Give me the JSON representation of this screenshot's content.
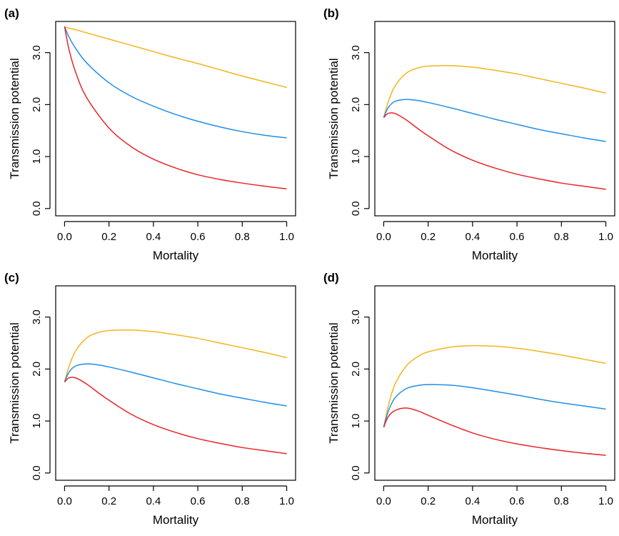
{
  "chart_data": [
    {
      "panel": "(a)",
      "type": "line",
      "xlabel": "Mortality",
      "ylabel": "Transmission potential",
      "xlim": [
        0,
        1
      ],
      "ylim": [
        0,
        3.5
      ],
      "xticks": [
        "0.0",
        "0.2",
        "0.4",
        "0.6",
        "0.8",
        "1.0"
      ],
      "yticks": [
        "0.0",
        "1.0",
        "2.0",
        "3.0"
      ],
      "x": [
        0,
        0.02,
        0.05,
        0.1,
        0.2,
        0.3,
        0.4,
        0.5,
        0.6,
        0.7,
        0.8,
        0.9,
        1.0
      ],
      "series": [
        {
          "color": "#F2B51C",
          "values": [
            3.5,
            3.47,
            3.44,
            3.38,
            3.26,
            3.14,
            3.02,
            2.9,
            2.79,
            2.67,
            2.55,
            2.44,
            2.33
          ]
        },
        {
          "color": "#1F8FE6",
          "values": [
            3.5,
            3.3,
            3.08,
            2.8,
            2.42,
            2.16,
            1.97,
            1.81,
            1.68,
            1.57,
            1.48,
            1.41,
            1.36
          ]
        },
        {
          "color": "#E8252A",
          "values": [
            3.5,
            3.06,
            2.62,
            2.13,
            1.55,
            1.19,
            0.95,
            0.78,
            0.65,
            0.56,
            0.49,
            0.43,
            0.38
          ]
        }
      ]
    },
    {
      "panel": "(b)",
      "type": "line",
      "xlabel": "Mortality",
      "ylabel": "Transmission potential",
      "xlim": [
        0,
        1
      ],
      "ylim": [
        0,
        3.5
      ],
      "xticks": [
        "0.0",
        "0.2",
        "0.4",
        "0.6",
        "0.8",
        "1.0"
      ],
      "yticks": [
        "0.0",
        "1.0",
        "2.0",
        "3.0"
      ],
      "x": [
        0,
        0.02,
        0.05,
        0.1,
        0.15,
        0.2,
        0.3,
        0.4,
        0.5,
        0.6,
        0.7,
        0.8,
        0.9,
        1.0
      ],
      "series": [
        {
          "color": "#F2B51C",
          "values": [
            1.75,
            2.05,
            2.35,
            2.6,
            2.7,
            2.74,
            2.75,
            2.72,
            2.66,
            2.59,
            2.5,
            2.41,
            2.32,
            2.22
          ]
        },
        {
          "color": "#1F8FE6",
          "values": [
            1.75,
            1.94,
            2.06,
            2.1,
            2.08,
            2.04,
            1.94,
            1.83,
            1.72,
            1.62,
            1.52,
            1.44,
            1.36,
            1.29
          ]
        },
        {
          "color": "#E8252A",
          "values": [
            1.75,
            1.83,
            1.83,
            1.71,
            1.55,
            1.4,
            1.13,
            0.93,
            0.78,
            0.66,
            0.57,
            0.49,
            0.43,
            0.37
          ]
        }
      ]
    },
    {
      "panel": "(c)",
      "type": "line",
      "xlabel": "Mortality",
      "ylabel": "Transmission potential",
      "xlim": [
        0,
        1
      ],
      "ylim": [
        0,
        3.5
      ],
      "xticks": [
        "0.0",
        "0.2",
        "0.4",
        "0.6",
        "0.8",
        "1.0"
      ],
      "yticks": [
        "0.0",
        "1.0",
        "2.0",
        "3.0"
      ],
      "x": [
        0,
        0.02,
        0.05,
        0.1,
        0.15,
        0.2,
        0.3,
        0.4,
        0.5,
        0.6,
        0.7,
        0.8,
        0.9,
        1.0
      ],
      "series": [
        {
          "color": "#F2B51C",
          "values": [
            1.75,
            2.05,
            2.35,
            2.6,
            2.7,
            2.74,
            2.75,
            2.72,
            2.66,
            2.59,
            2.5,
            2.41,
            2.32,
            2.22
          ]
        },
        {
          "color": "#1F8FE6",
          "values": [
            1.75,
            1.94,
            2.06,
            2.1,
            2.08,
            2.04,
            1.94,
            1.83,
            1.72,
            1.62,
            1.52,
            1.44,
            1.36,
            1.29
          ]
        },
        {
          "color": "#E8252A",
          "values": [
            1.75,
            1.83,
            1.83,
            1.71,
            1.55,
            1.4,
            1.13,
            0.93,
            0.78,
            0.66,
            0.57,
            0.49,
            0.43,
            0.37
          ]
        }
      ]
    },
    {
      "panel": "(d)",
      "type": "line",
      "xlabel": "Mortality",
      "ylabel": "Transmission potential",
      "xlim": [
        0,
        1
      ],
      "ylim": [
        0,
        3.5
      ],
      "xticks": [
        "0.0",
        "0.2",
        "0.4",
        "0.6",
        "0.8",
        "1.0"
      ],
      "yticks": [
        "0.0",
        "1.0",
        "2.0",
        "3.0"
      ],
      "x": [
        0,
        0.02,
        0.05,
        0.1,
        0.15,
        0.2,
        0.3,
        0.4,
        0.5,
        0.6,
        0.7,
        0.8,
        0.9,
        1.0
      ],
      "series": [
        {
          "color": "#F2B51C",
          "values": [
            0.88,
            1.28,
            1.7,
            2.05,
            2.23,
            2.33,
            2.42,
            2.45,
            2.44,
            2.4,
            2.34,
            2.27,
            2.19,
            2.11
          ]
        },
        {
          "color": "#1F8FE6",
          "values": [
            0.88,
            1.18,
            1.44,
            1.62,
            1.68,
            1.7,
            1.69,
            1.64,
            1.57,
            1.5,
            1.42,
            1.35,
            1.29,
            1.23
          ]
        },
        {
          "color": "#E8252A",
          "values": [
            0.88,
            1.08,
            1.2,
            1.25,
            1.2,
            1.11,
            0.93,
            0.77,
            0.65,
            0.56,
            0.49,
            0.43,
            0.38,
            0.34
          ]
        }
      ]
    }
  ]
}
